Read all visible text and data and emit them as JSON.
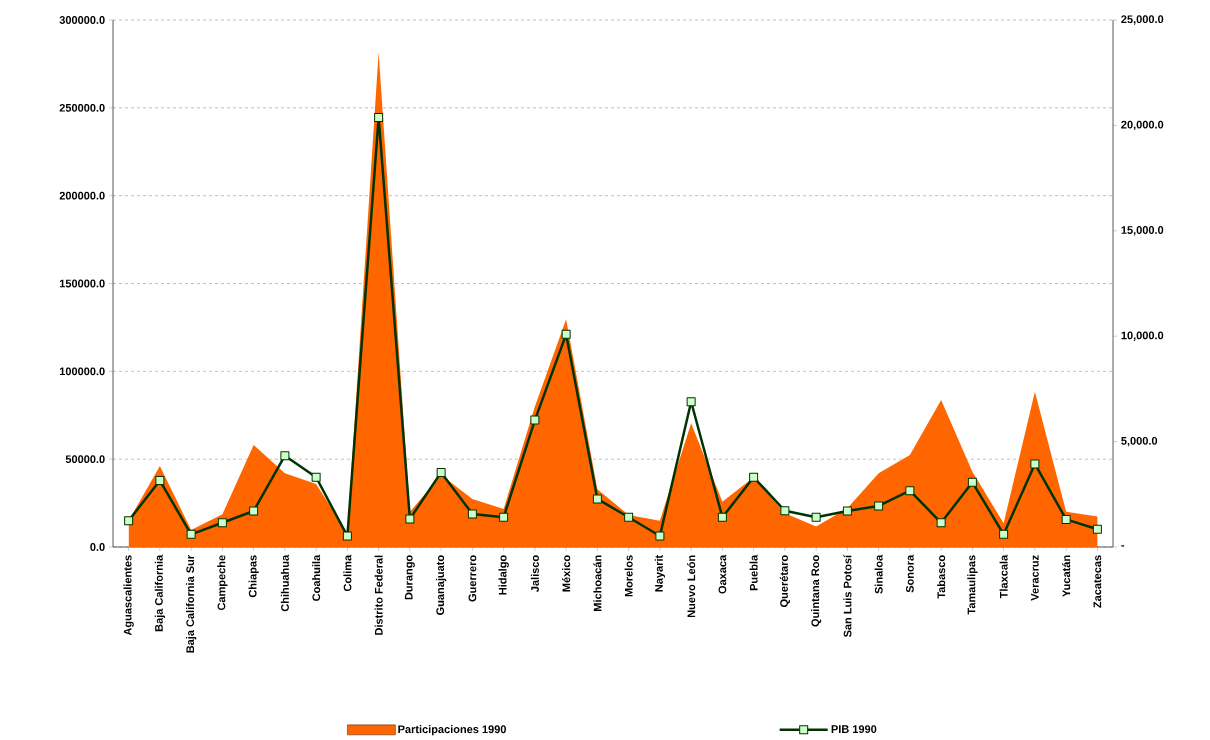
{
  "chart_data": {
    "type": "area",
    "categories": [
      "Aguascalientes",
      "Baja California",
      "Baja California Sur",
      "Campeche",
      "Chiapas",
      "Chihuahua",
      "Coahuila",
      "Colima",
      "Distrito Federal",
      "Durango",
      "Guanajuato",
      "Guerrero",
      "Hidalgo",
      "Jalisco",
      "México",
      "Michoacán",
      "Morelos",
      "Nayarit",
      "Nuevo León",
      "Oaxaca",
      "Puebla",
      "Querétaro",
      "Quintana Roo",
      "San Luis Potosí",
      "Sinaloa",
      "Sonora",
      "Tabasco",
      "Tamaulipas",
      "Tlaxcala",
      "Veracruz",
      "Yucatán",
      "Zacatecas"
    ],
    "series": [
      {
        "name": "Participaciones 1990",
        "color": "#ff6600",
        "values": [
          15000,
          46100,
          9700,
          18600,
          58100,
          42000,
          35900,
          8000,
          281700,
          20000,
          41000,
          27300,
          21600,
          80000,
          129700,
          32900,
          18200,
          15000,
          70400,
          25800,
          39700,
          19200,
          11600,
          22000,
          42000,
          52400,
          83700,
          42900,
          13500,
          88400,
          20100,
          17300
        ]
      },
      {
        "name": "PIB 1990",
        "type": "line",
        "axis": "y2",
        "color": "#003300",
        "marker": "square",
        "values": [
          1250,
          3150,
          600,
          1150,
          1710,
          4330,
          3310,
          520,
          20380,
          1330,
          3540,
          1570,
          1410,
          6020,
          10090,
          2280,
          1410,
          520,
          6890,
          1410,
          3310,
          1720,
          1410,
          1710,
          1950,
          2670,
          1150,
          3070,
          600,
          3940,
          1310,
          840
        ]
      }
    ],
    "ylim": [
      0,
      300000
    ],
    "yticks": [
      {
        "value": 0,
        "label": "0.0"
      },
      {
        "value": 50000,
        "label": "50000.0"
      },
      {
        "value": 100000,
        "label": "100000.0"
      },
      {
        "value": 150000,
        "label": "150000.0"
      },
      {
        "value": 200000,
        "label": "200000.0"
      },
      {
        "value": 250000,
        "label": "250000.0"
      },
      {
        "value": 300000,
        "label": "300000.0"
      }
    ],
    "y2lim": [
      0,
      25000
    ],
    "y2ticks": [
      {
        "value": 0,
        "label": "-"
      },
      {
        "value": 5000,
        "label": "5,000.0"
      },
      {
        "value": 10000,
        "label": "10,000.0"
      },
      {
        "value": 15000,
        "label": "15,000.0"
      },
      {
        "value": 20000,
        "label": "20,000.0"
      },
      {
        "value": 25000,
        "label": "25,000.0"
      }
    ],
    "grid": "y",
    "legend": "bottom"
  }
}
